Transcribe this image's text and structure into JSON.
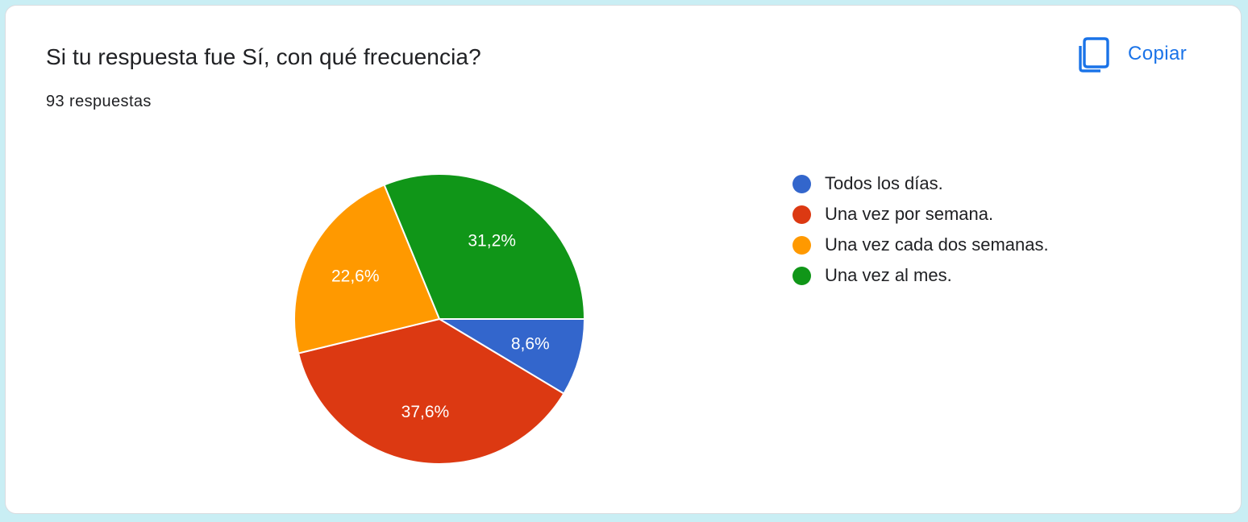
{
  "card": {
    "title": "Si tu respuesta fue Sí, con qué frecuencia?",
    "response_count": "93 respuestas",
    "copy_label": "Copiar",
    "copy_icon": "copy-icon",
    "accent_color": "#1a73e8"
  },
  "chart_data": {
    "type": "pie",
    "categories": [
      "Todos los días.",
      "Una vez por semana.",
      "Una vez cada dos semanas.",
      "Una vez al mes."
    ],
    "values": [
      8.6,
      37.6,
      22.6,
      31.2
    ],
    "value_labels": [
      "8,6%",
      "37,6%",
      "22,6%",
      "31,2%"
    ],
    "colors": [
      "#3366cc",
      "#dc3912",
      "#ff9900",
      "#109618"
    ],
    "start_angle": "3 o'clock",
    "direction": "clockwise",
    "legend_position": "right"
  }
}
